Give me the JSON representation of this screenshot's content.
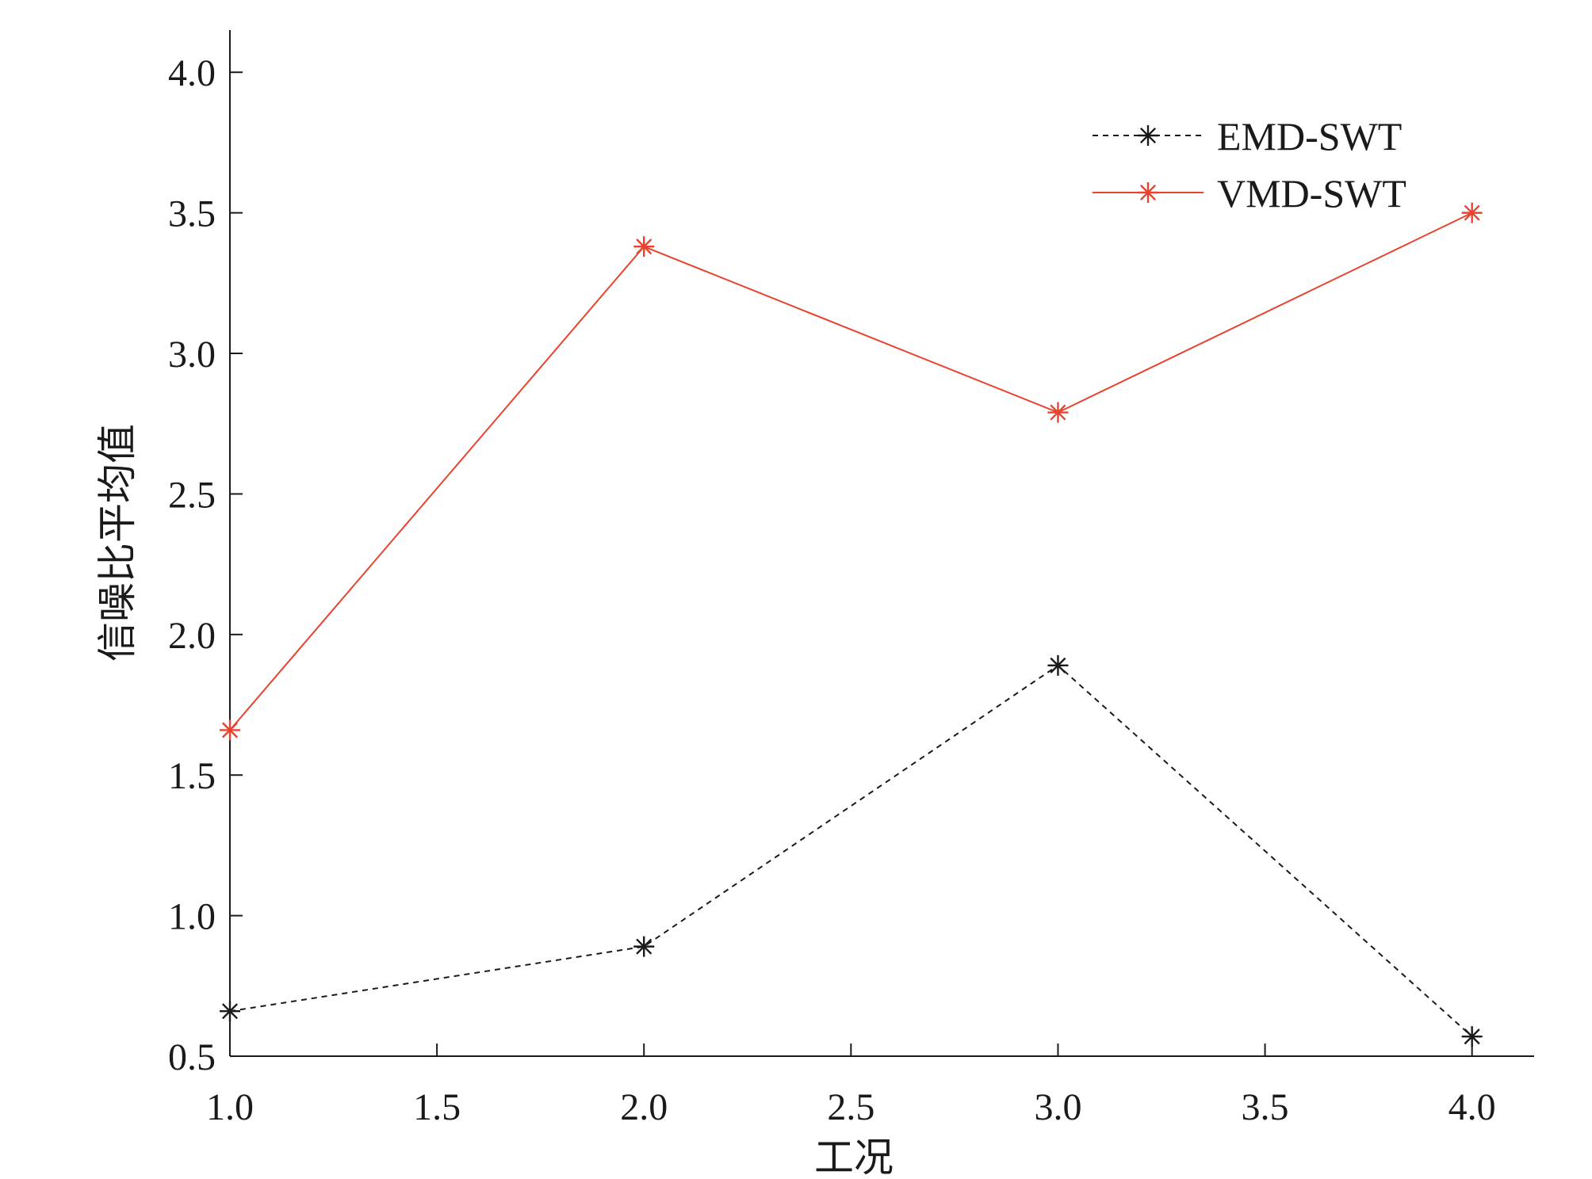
{
  "chart_data": {
    "type": "line",
    "title": "",
    "xlabel": "工况",
    "ylabel": "信噪比平均值",
    "xlim": [
      1.0,
      4.15
    ],
    "ylim": [
      0.5,
      4.15
    ],
    "xticks": [
      "1.0",
      "1.5",
      "2.0",
      "2.5",
      "3.0",
      "3.5",
      "4.0"
    ],
    "yticks": [
      "0.5",
      "1.0",
      "1.5",
      "2.0",
      "2.5",
      "3.0",
      "3.5",
      "4.0"
    ],
    "grid": false,
    "legend_position": "top-right",
    "series": [
      {
        "name": "EMD-SWT",
        "color": "#1a1a1a",
        "line_style": "dashed",
        "marker": "asterisk",
        "x": [
          1.0,
          2.0,
          3.0,
          4.0
        ],
        "y": [
          0.66,
          0.89,
          1.89,
          0.57
        ]
      },
      {
        "name": "VMD-SWT",
        "color": "#e8432e",
        "line_style": "solid",
        "marker": "asterisk",
        "x": [
          1.0,
          2.0,
          3.0,
          4.0
        ],
        "y": [
          1.66,
          3.38,
          2.79,
          3.5
        ]
      }
    ]
  }
}
